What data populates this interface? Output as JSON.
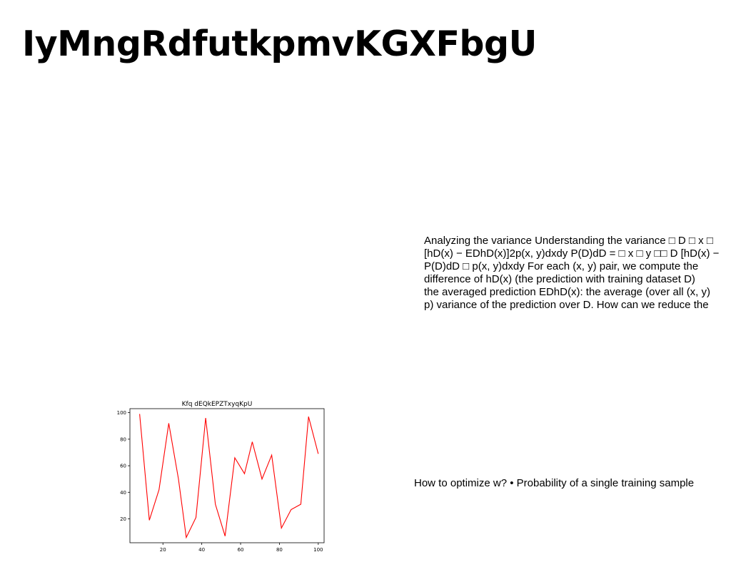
{
  "slide": {
    "title": "IyMngRdfutkpmvKGXFbgU",
    "paragraph_lines": [
      "Analyzing the variance Understanding the variance □ D □ x □",
      "[hD(x) − EDhD(x)]2p(x, y)dxdy P(D)dD = □ x □ y □□ D [hD(x) −",
      "P(D)dD □ p(x, y)dxdy For each (x, y) pair, we compute the",
      "difference of hD(x) (the prediction with training dataset D)",
      "the averaged prediction EDhD(x): the average (over all (x, y)",
      "p) variance of the prediction over D. How can we reduce the"
    ],
    "caption": "How to optimize w? • Probability of a single training sample"
  },
  "chart_data": {
    "type": "line",
    "title": "Kfq dEQkEPZTxyqKpU",
    "xlabel": "",
    "ylabel": "",
    "xlim": [
      3,
      103
    ],
    "ylim": [
      2,
      103
    ],
    "xticks": [
      20,
      40,
      60,
      80,
      100
    ],
    "yticks": [
      20,
      40,
      60,
      80,
      100
    ],
    "grid": false,
    "series": [
      {
        "color": "#ff0000",
        "x": [
          8,
          13,
          18,
          23,
          28,
          32,
          37,
          42,
          47,
          52,
          57,
          62,
          66,
          71,
          76,
          81,
          86,
          91,
          95,
          100
        ],
        "y": [
          99,
          19,
          42,
          92,
          50,
          6,
          21,
          96,
          31,
          7,
          66,
          54,
          78,
          50,
          68,
          13,
          27,
          31,
          97,
          69
        ]
      }
    ]
  }
}
